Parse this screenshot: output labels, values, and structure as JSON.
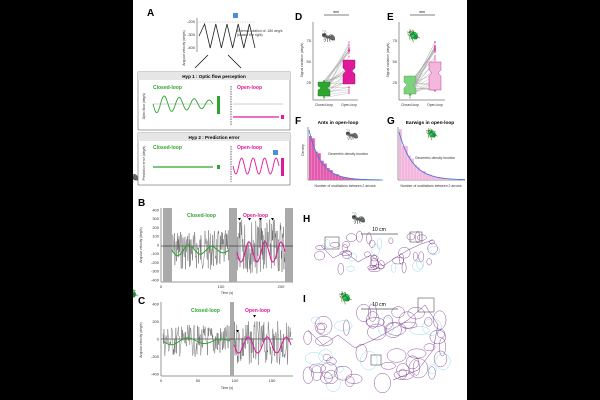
{
  "colors": {
    "green": "#2ea52e",
    "magenta": "#e0199a",
    "purple": "#7a3d8c",
    "lightpink": "#f3b6dd",
    "darkpink": "#c4127f",
    "lightgreen": "#7fd07f",
    "blue": "#6aa6e8",
    "cyan": "#8fd3e6"
  },
  "panel_labels": {
    "a": "A",
    "b": "B",
    "c": "C",
    "d": "D",
    "e": "E",
    "f": "F",
    "g": "G",
    "h": "H",
    "i": "I"
  },
  "panelA": {
    "ylabel": "Angular velocity (deg/s)",
    "ticks": [
      "-200",
      "-300",
      "-400"
    ],
    "note1": "External rotation of -180 deg/s",
    "note2": "(toward the right)",
    "hyp1": "Hyp 1 : Optic flow perception",
    "hyp2": "Hyp 2 : Prediction error",
    "closed": "Closed-loop",
    "open": "Open-loop",
    "ylabel1": "Optic flow (deg/s)",
    "ylabel2": "Prediction error (deg/s)"
  },
  "panelB": {
    "closed": "Closed-loop",
    "open": "Open-loop",
    "ylabel": "Angular velocity (deg/s)",
    "xlabel": "Time (s)",
    "yticks": [
      "400",
      "300",
      "200",
      "100",
      "0",
      "-100",
      "-200",
      "-300",
      "-400"
    ],
    "xticks": [
      "0",
      "100",
      "200"
    ]
  },
  "panelC": {
    "closed": "Closed-loop",
    "open": "Open-loop",
    "ylabel": "Angular velocity (deg/s)",
    "xlabel": "Time (s)",
    "yticks": [
      "400",
      "200",
      "0",
      "-200",
      "-400"
    ],
    "xticks": [
      "0",
      "50",
      "100",
      "150"
    ]
  },
  "panelD": {
    "ylabel": "Signal variation (deg/s)",
    "sig": "***",
    "cats": [
      "Closed-loop",
      "Open-loop"
    ],
    "yticks": [
      "75",
      "50",
      "25"
    ]
  },
  "panelE": {
    "ylabel": "Signal variation (deg/s)",
    "sig": "***",
    "cats": [
      "Closed-loop",
      "Open-loop"
    ],
    "yticks": [
      "75",
      "50",
      "25"
    ]
  },
  "panelF": {
    "title": "Ants in open-loop",
    "ylabel": "Density",
    "legend": "Geometric density function",
    "xlabel": "Number of oscillations between 2 arrows"
  },
  "panelG": {
    "title": "Earwigs in open-loop",
    "legend": "Geometric density function",
    "xlabel": "Number of oscillations between 2 arrows"
  },
  "panelH": {
    "scale": "10 cm"
  },
  "panelI": {
    "scale": "10 cm"
  }
}
